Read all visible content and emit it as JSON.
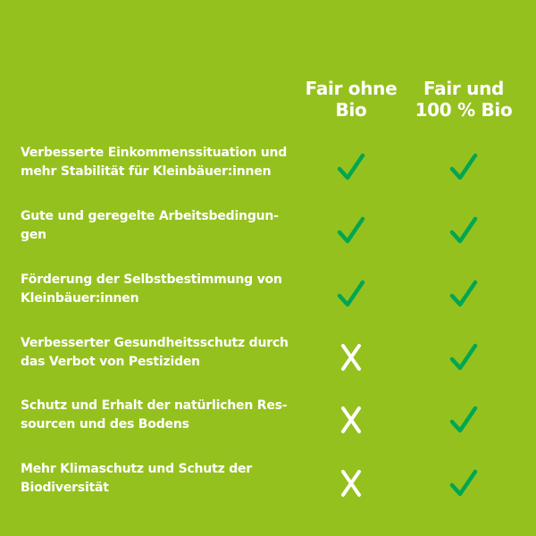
{
  "colors": {
    "background": "#95c11f",
    "check": "#00a651",
    "cross": "#ffffff",
    "text": "#ffffff"
  },
  "columns": [
    {
      "line1": "Fair ohne",
      "line2": "Bio"
    },
    {
      "line1": "Fair und",
      "line2": "100 % Bio"
    }
  ],
  "rows": [
    {
      "line1": "Verbesserte Einkommenssituation und",
      "line2": "mehr Stabilität für Kleinbäuer:innen",
      "fair_ohne_bio": "check-icon",
      "fair_und_bio": "check-icon"
    },
    {
      "line1": "Gute und geregelte Arbeitsbedingun-",
      "line2": "gen",
      "fair_ohne_bio": "check-icon",
      "fair_und_bio": "check-icon"
    },
    {
      "line1": "Förderung der Selbstbestimmung von",
      "line2": "Kleinbäuer:innen",
      "fair_ohne_bio": "check-icon",
      "fair_und_bio": "check-icon"
    },
    {
      "line1": "Verbesserter Gesundheitsschutz durch",
      "line2": "das Verbot von Pestiziden",
      "fair_ohne_bio": "cross-icon",
      "fair_und_bio": "check-icon"
    },
    {
      "line1": "Schutz und Erhalt der natürlichen Res-",
      "line2": "sourcen und des Bodens",
      "fair_ohne_bio": "cross-icon",
      "fair_und_bio": "check-icon"
    },
    {
      "line1": "Mehr Klimaschutz und Schutz der",
      "line2": "Biodiversität",
      "fair_ohne_bio": "cross-icon",
      "fair_und_bio": "check-icon"
    }
  ]
}
